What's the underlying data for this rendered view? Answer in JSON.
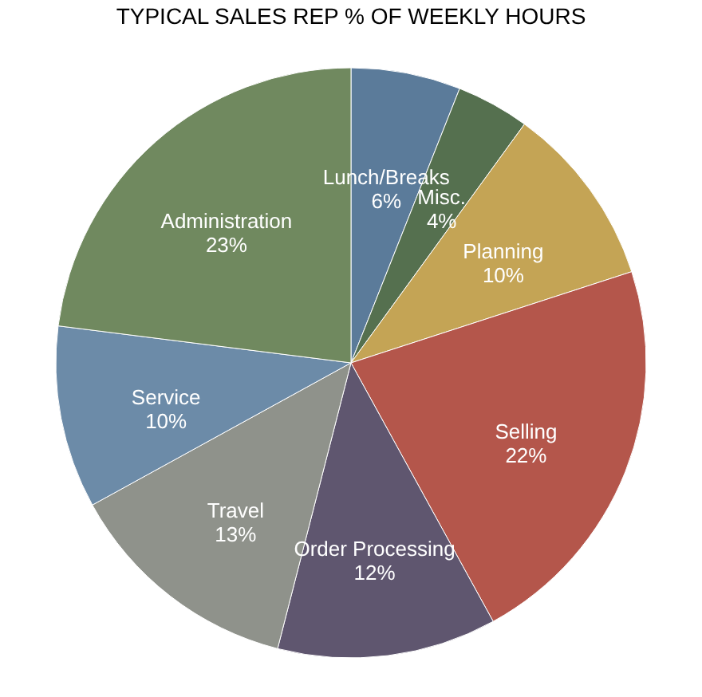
{
  "chart_data": {
    "type": "pie",
    "title": "TYPICAL SALES REP % OF WEEKLY HOURS",
    "categories": [
      "Lunch/Breaks",
      "Misc.",
      "Planning",
      "Selling",
      "Order Processing",
      "Travel",
      "Service",
      "Administration"
    ],
    "values": [
      6,
      4,
      10,
      22,
      12,
      13,
      10,
      23
    ],
    "value_labels": [
      "6%",
      "4%",
      "10%",
      "22%",
      "12%",
      "13%",
      "10%",
      "23%"
    ],
    "colors": [
      "#5b7b9a",
      "#55704f",
      "#c4a455",
      "#b4564b",
      "#5f566f",
      "#8f928b",
      "#6c8ba8",
      "#70895f"
    ],
    "legend": false
  }
}
